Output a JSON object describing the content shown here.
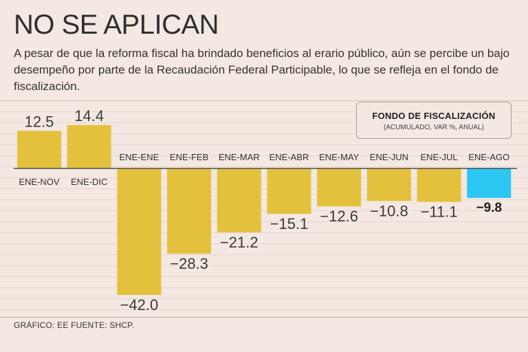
{
  "header": {
    "title": "NO SE APLICAN",
    "subtitle": "A pesar de que la reforma fiscal ha brindado beneficios al erario público, aún se percibe un bajo desempeño por parte de la Recaudación Federal Participable, lo que se refleja en el fondo de fiscalización."
  },
  "legend": {
    "title": "FONDO DE FISCALIZACIÓN",
    "subtitle": "(ACUMULADO, VAR %, ANUAL)"
  },
  "footer": {
    "text": "GRÁFICO: EE  FUENTE: SHCP."
  },
  "colors": {
    "bar": "#e3c13d",
    "highlight": "#2bc6f2",
    "baseline": "#4a4a4a"
  },
  "chart_data": {
    "type": "bar",
    "title": "FONDO DE FISCALIZACIÓN",
    "subtitle": "(ACUMULADO, VAR %, ANUAL)",
    "xlabel": "",
    "ylabel": "",
    "categories": [
      "ENE-NOV",
      "ENE-DIC",
      "ENE-ENE",
      "ENE-FEB",
      "ENE-MAR",
      "ENE-ABR",
      "ENE-MAY",
      "ENE-JUN",
      "ENE-JUL",
      "ENE-AGO"
    ],
    "values": [
      12.5,
      14.4,
      -42.0,
      -28.3,
      -21.2,
      -15.1,
      -12.6,
      -10.8,
      -11.1,
      -9.8
    ],
    "value_labels": [
      "12.5",
      "14.4",
      "−42.0",
      "−28.3",
      "−21.2",
      "−15.1",
      "−12.6",
      "−10.8",
      "−11.1",
      "−9.8"
    ],
    "highlight_index": 9,
    "ylim": [
      -42.0,
      14.4
    ],
    "grid": true
  }
}
